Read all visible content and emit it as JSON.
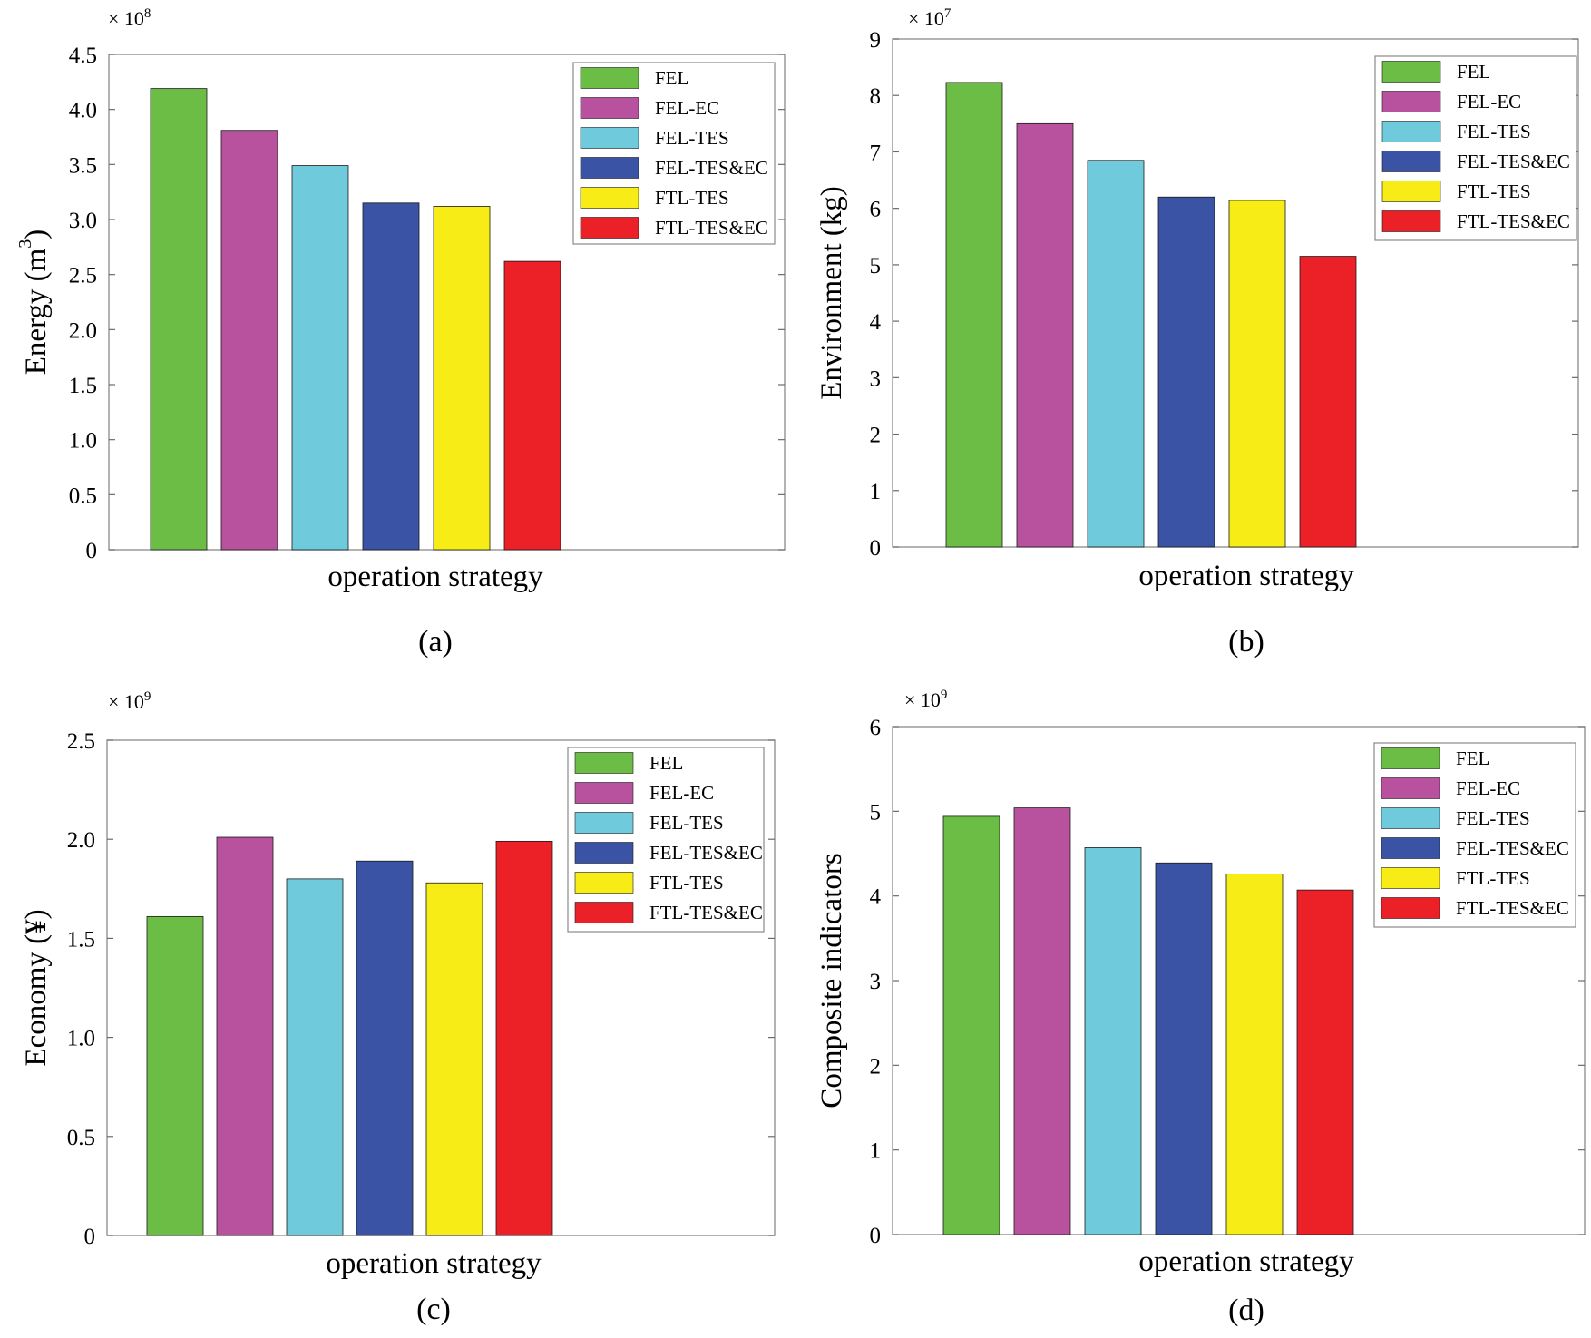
{
  "colors": {
    "FEL": "#6cbd45",
    "FEL-EC": "#b8529f",
    "FEL-TES": "#6fcbdc",
    "FEL-TES&EC": "#3a53a4",
    "FTL-TES": "#f7ec16",
    "FTL-TES&EC": "#ec2027"
  },
  "chart_data": [
    {
      "type": "bar",
      "panel_label": "(a)",
      "xlabel": "operation strategy",
      "ylabel": "Energy (m³)",
      "ylabel_main": "Energy (m",
      "ylabel_sup": "3",
      "ylabel_tail": ")",
      "multiplier_base": "× 10",
      "multiplier_exp": "8",
      "ylim": [
        0,
        4.5
      ],
      "yticks": [
        0,
        0.5,
        1.0,
        1.5,
        2.0,
        2.5,
        3.0,
        3.5,
        4.0,
        4.5
      ],
      "ytick_labels": [
        "0",
        "0.5",
        "1.0",
        "1.5",
        "2.0",
        "2.5",
        "3.0",
        "3.5",
        "4.0",
        "4.5"
      ],
      "legend_position": "top-right",
      "series": [
        {
          "name": "FEL",
          "value": 4.19
        },
        {
          "name": "FEL-EC",
          "value": 3.81
        },
        {
          "name": "FEL-TES",
          "value": 3.49
        },
        {
          "name": "FEL-TES&EC",
          "value": 3.15
        },
        {
          "name": "FTL-TES",
          "value": 3.12
        },
        {
          "name": "FTL-TES&EC",
          "value": 2.62
        }
      ]
    },
    {
      "type": "bar",
      "panel_label": "(b)",
      "xlabel": "operation strategy",
      "ylabel": "Environment (kg)",
      "ylabel_main": "Environment (kg)",
      "ylabel_sup": "",
      "ylabel_tail": "",
      "multiplier_base": "× 10",
      "multiplier_exp": "7",
      "ylim": [
        0,
        9
      ],
      "yticks": [
        0,
        1,
        2,
        3,
        4,
        5,
        6,
        7,
        8,
        9
      ],
      "ytick_labels": [
        "0",
        "1",
        "2",
        "3",
        "4",
        "5",
        "6",
        "7",
        "8",
        "9"
      ],
      "legend_position": "top-right",
      "series": [
        {
          "name": "FEL",
          "value": 8.23
        },
        {
          "name": "FEL-EC",
          "value": 7.5
        },
        {
          "name": "FEL-TES",
          "value": 6.85
        },
        {
          "name": "FEL-TES&EC",
          "value": 6.2
        },
        {
          "name": "FTL-TES",
          "value": 6.14
        },
        {
          "name": "FTL-TES&EC",
          "value": 5.15
        }
      ]
    },
    {
      "type": "bar",
      "panel_label": "(c)",
      "xlabel": "operation strategy",
      "ylabel": "Economy (¥)",
      "ylabel_main": "Economy (¥)",
      "ylabel_sup": "",
      "ylabel_tail": "",
      "multiplier_base": "× 10",
      "multiplier_exp": "9",
      "ylim": [
        0,
        2.5
      ],
      "yticks": [
        0,
        0.5,
        1.0,
        1.5,
        2.0,
        2.5
      ],
      "ytick_labels": [
        "0",
        "0.5",
        "1.0",
        "1.5",
        "2.0",
        "2.5"
      ],
      "legend_position": "top-right",
      "series": [
        {
          "name": "FEL",
          "value": 1.61
        },
        {
          "name": "FEL-EC",
          "value": 2.01
        },
        {
          "name": "FEL-TES",
          "value": 1.8
        },
        {
          "name": "FEL-TES&EC",
          "value": 1.89
        },
        {
          "name": "FTL-TES",
          "value": 1.78
        },
        {
          "name": "FTL-TES&EC",
          "value": 1.99
        }
      ]
    },
    {
      "type": "bar",
      "panel_label": "(d)",
      "xlabel": "operation strategy",
      "ylabel": "Composite indicators",
      "ylabel_main": "Composite indicators",
      "ylabel_sup": "",
      "ylabel_tail": "",
      "multiplier_base": "× 10",
      "multiplier_exp": "9",
      "ylim": [
        0,
        6
      ],
      "yticks": [
        0,
        1,
        2,
        3,
        4,
        5,
        6
      ],
      "ytick_labels": [
        "0",
        "1",
        "2",
        "3",
        "4",
        "5",
        "6"
      ],
      "legend_position": "top-right",
      "series": [
        {
          "name": "FEL",
          "value": 4.94
        },
        {
          "name": "FEL-EC",
          "value": 5.04
        },
        {
          "name": "FEL-TES",
          "value": 4.57
        },
        {
          "name": "FEL-TES&EC",
          "value": 4.39
        },
        {
          "name": "FTL-TES",
          "value": 4.26
        },
        {
          "name": "FTL-TES&EC",
          "value": 4.07
        }
      ]
    }
  ]
}
